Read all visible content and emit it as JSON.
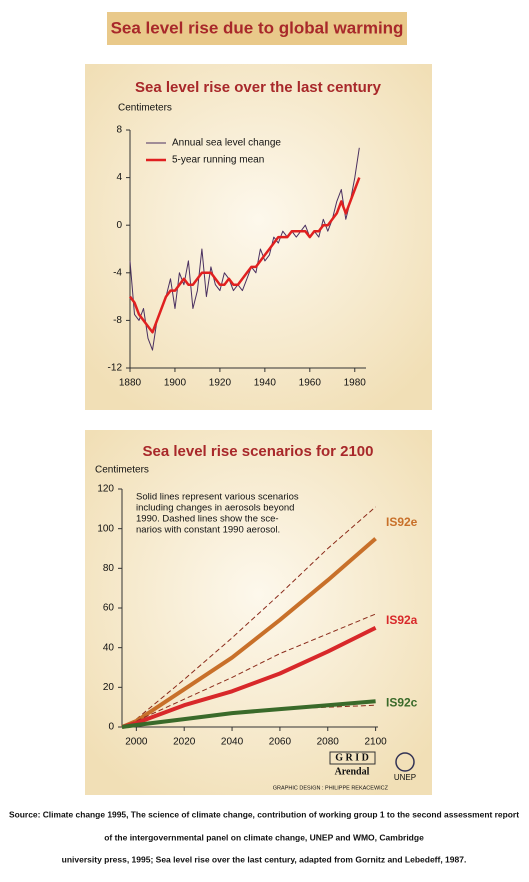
{
  "header": {
    "title": "Sea level rise due to global warming"
  },
  "chart_data": [
    {
      "type": "line",
      "title": "Sea level rise over the last century",
      "y_label": "Centimeters",
      "x": [
        1880,
        1882,
        1884,
        1886,
        1888,
        1890,
        1892,
        1894,
        1896,
        1898,
        1900,
        1902,
        1904,
        1906,
        1908,
        1910,
        1912,
        1914,
        1916,
        1918,
        1920,
        1922,
        1924,
        1926,
        1928,
        1930,
        1932,
        1934,
        1936,
        1938,
        1940,
        1942,
        1944,
        1946,
        1948,
        1950,
        1952,
        1954,
        1956,
        1958,
        1960,
        1962,
        1964,
        1966,
        1968,
        1970,
        1972,
        1974,
        1976,
        1978,
        1980,
        1982
      ],
      "series": [
        {
          "name": "Annual sea level change",
          "color": "#4a3060",
          "width": 1,
          "values": [
            -3,
            -7.5,
            -8,
            -7,
            -9.5,
            -10.5,
            -8,
            -7,
            -6,
            -4.5,
            -7,
            -4,
            -5,
            -3,
            -7,
            -5.5,
            -2,
            -6,
            -3.5,
            -5,
            -5.5,
            -4,
            -4.5,
            -5.5,
            -5,
            -5.5,
            -4.5,
            -3.5,
            -4,
            -2,
            -3,
            -2.5,
            -1,
            -1.5,
            -0.5,
            -1,
            -0.5,
            -1,
            -0.5,
            0,
            -1,
            -0.5,
            -1,
            0.5,
            -0.5,
            0.5,
            2,
            3,
            0.5,
            2,
            4,
            6.5
          ]
        },
        {
          "name": "5-year running mean",
          "color": "#e02020",
          "width": 2.5,
          "values": [
            -6,
            -6.5,
            -7.5,
            -8,
            -8.5,
            -9,
            -8,
            -7,
            -6,
            -5.5,
            -5.5,
            -5,
            -4.5,
            -5,
            -5,
            -4.5,
            -4,
            -4,
            -4,
            -4.5,
            -5,
            -5,
            -4.5,
            -5,
            -5,
            -4.5,
            -4,
            -3.5,
            -3.5,
            -3,
            -2.5,
            -2,
            -1.5,
            -1,
            -1,
            -1,
            -0.5,
            -0.5,
            -0.5,
            -0.5,
            -1,
            -0.5,
            -0.5,
            0,
            0,
            0.5,
            1,
            2,
            1,
            2,
            3,
            4
          ]
        }
      ],
      "xlim": [
        1880,
        1985
      ],
      "xticks": [
        1880,
        1900,
        1920,
        1940,
        1960,
        1980
      ],
      "ylim": [
        -12,
        8
      ],
      "yticks": [
        8,
        4,
        0,
        -4,
        -8,
        -12
      ],
      "legend": "upper left"
    },
    {
      "type": "line",
      "title": "Sea level rise scenarios for 2100",
      "y_label": "Centimeters",
      "annotation": [
        "Solid lines represent various scenarios",
        "including changes in aerosols beyond",
        "1990. Dashed lines show the sce-",
        "narios with constant 1990 aerosol."
      ],
      "x": [
        1994,
        2000,
        2020,
        2040,
        2060,
        2080,
        2100
      ],
      "series": [
        {
          "name": "IS92e",
          "color": "#c8702a",
          "width": 4,
          "values": [
            0,
            3,
            19,
            35,
            54,
            74,
            95
          ],
          "dashed_values": [
            0,
            4,
            24,
            45,
            67,
            90,
            111
          ]
        },
        {
          "name": "IS92a",
          "color": "#d8282a",
          "width": 4,
          "values": [
            0,
            2,
            11,
            18,
            27,
            38,
            50
          ],
          "dashed_values": [
            0,
            3,
            14,
            25,
            37,
            47,
            57
          ]
        },
        {
          "name": "IS92c",
          "color": "#3a6a2a",
          "width": 4,
          "values": [
            0,
            1,
            4,
            7,
            9,
            11,
            13
          ],
          "dashed_values": [
            0,
            1,
            4,
            7,
            9,
            10,
            11
          ]
        }
      ],
      "dashed_color": "#8a2a1a",
      "xlim": [
        1994,
        2101
      ],
      "xticks": [
        2000,
        2020,
        2040,
        2060,
        2080,
        2100
      ],
      "ylim": [
        0,
        120
      ],
      "yticks": [
        0,
        20,
        40,
        60,
        80,
        100,
        120
      ],
      "legend": "line-end"
    }
  ],
  "logos": {
    "grid": "G R I D",
    "arendal": "Arendal",
    "unep": "UNEP",
    "credit": "GRAPHIC DESIGN : PHILIPPE REKACEWICZ"
  },
  "footer": {
    "lines": [
      "Source: Climate change 1995, The science of climate change, contribution of working group 1 to the second assessment report",
      "of the intergovernmental panel on climate change, UNEP and WMO, Cambridge",
      "university press,  1995; Sea level rise over the last century, adapted from Gornitz and Lebedeff, 1987."
    ]
  }
}
